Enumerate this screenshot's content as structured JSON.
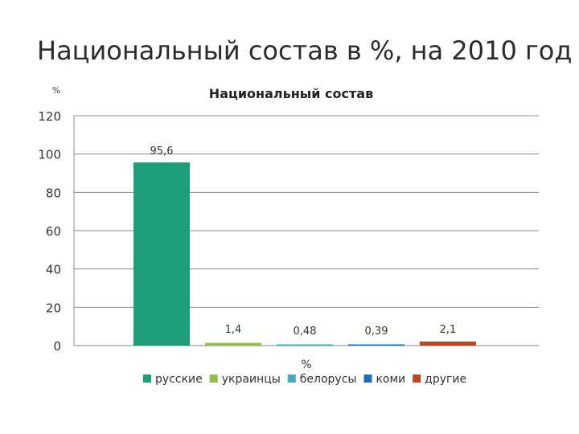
{
  "slide": {
    "title": "Национальный состав в %, на 2010 год"
  },
  "chart_data": {
    "type": "bar",
    "title": "Национальный состав",
    "ylabel": "%",
    "xlabel": "%",
    "ylim": [
      0,
      120
    ],
    "yticks": [
      0,
      20,
      40,
      60,
      80,
      100,
      120
    ],
    "grid": true,
    "legend_position": "bottom",
    "series": [
      {
        "name": "русские",
        "value": 95.6,
        "label": "95,6",
        "color": "#1e9e78"
      },
      {
        "name": "украинцы",
        "value": 1.4,
        "label": "1,4",
        "color": "#8dbf4a"
      },
      {
        "name": "белорусы",
        "value": 0.48,
        "label": "0,48",
        "color": "#4aa8c7"
      },
      {
        "name": "коми",
        "value": 0.39,
        "label": "0,39",
        "color": "#1f6fb0"
      },
      {
        "name": "другие",
        "value": 2.1,
        "label": "2,1",
        "color": "#b8491f"
      }
    ]
  }
}
